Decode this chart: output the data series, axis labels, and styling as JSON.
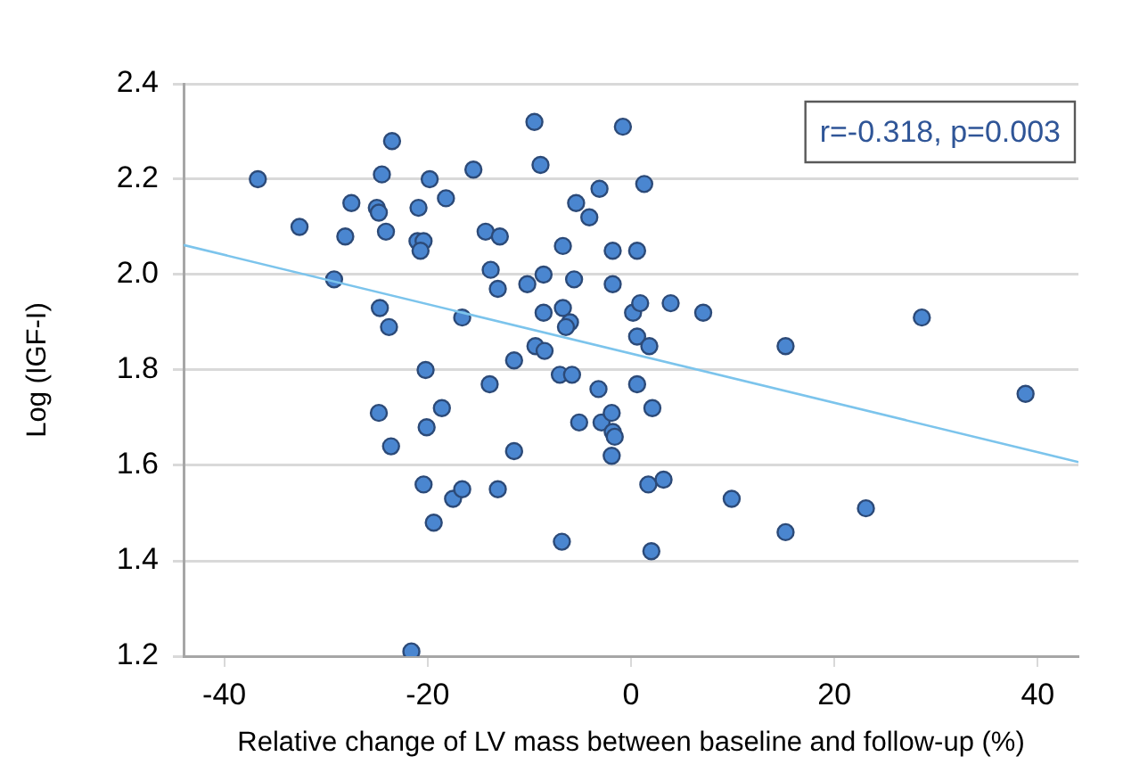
{
  "chart_data": {
    "type": "scatter",
    "xlabel": "Relative change of LV mass between baseline and follow-up (%)",
    "ylabel": "Log (IGF-I)",
    "xlim": [
      -44,
      44
    ],
    "xticks": [
      -40,
      -20,
      0,
      20,
      40
    ],
    "ylim": [
      1.2,
      2.4
    ],
    "yticks": [
      1.2,
      1.4,
      1.6,
      1.8,
      {
        "value": 2,
        "label": "2.0"
      },
      2.2,
      2.4
    ],
    "grid": "y",
    "legend": false,
    "marker": "circle",
    "annotations": [
      "r=-0.318, p=0.003"
    ],
    "series": [
      {
        "color": "#4a86d0",
        "x": [
          -36.7,
          -32.6,
          -27.5,
          -28.1,
          -29.2,
          -23.5,
          -24.5,
          -25.0,
          -24.8,
          -24.1,
          -24.7,
          -23.8,
          -20.9,
          -21.0,
          -20.4,
          -20.7,
          -19.8,
          -18.2,
          -15.5,
          -9.5,
          -8.9,
          -0.8,
          -14.3,
          -12.9,
          -13.8,
          -13.1,
          -16.6,
          -10.2,
          -8.6,
          -6.7,
          -5.4,
          -4.1,
          -3.1,
          1.3,
          -1.8,
          0.6,
          -5.6,
          -1.8,
          -8.6,
          -6.7,
          -6.0,
          -6.4,
          0.2,
          0.9,
          3.9,
          7.1,
          0.6,
          1.8,
          -9.4,
          -8.5,
          -11.5,
          -20.2,
          -13.9,
          -7.0,
          -5.8,
          -3.2,
          0.6,
          -18.6,
          -20.1,
          -5.1,
          -2.9,
          -1.9,
          2.1,
          -1.8,
          -1.6,
          -1.9,
          -11.5,
          -20.4,
          -17.5,
          -16.6,
          -13.1,
          -19.4,
          -6.8,
          1.7,
          3.2,
          9.9,
          2.0,
          -21.6,
          -24.8,
          -23.6,
          38.8,
          15.2,
          23.1,
          28.6,
          15.2
        ],
        "values": [
          2.2,
          2.1,
          2.15,
          2.08,
          1.99,
          2.28,
          2.21,
          2.14,
          2.13,
          2.09,
          1.93,
          1.89,
          2.14,
          2.07,
          2.07,
          2.05,
          2.2,
          2.16,
          2.22,
          2.32,
          2.23,
          2.31,
          2.09,
          2.08,
          2.01,
          1.97,
          1.91,
          1.98,
          2.0,
          2.06,
          2.15,
          2.12,
          2.18,
          2.19,
          2.05,
          2.05,
          1.99,
          1.98,
          1.92,
          1.93,
          1.9,
          1.89,
          1.92,
          1.94,
          1.94,
          1.92,
          1.87,
          1.85,
          1.85,
          1.84,
          1.82,
          1.8,
          1.77,
          1.79,
          1.79,
          1.76,
          1.77,
          1.72,
          1.68,
          1.69,
          1.69,
          1.71,
          1.72,
          1.67,
          1.66,
          1.62,
          1.63,
          1.56,
          1.53,
          1.55,
          1.55,
          1.48,
          1.44,
          1.56,
          1.57,
          1.53,
          1.42,
          1.21,
          1.71,
          1.64,
          1.75,
          1.46,
          1.51,
          1.91,
          1.85
        ]
      },
      {
        "type": "line",
        "color": "#7cc4ec",
        "marker": "none",
        "x": [
          -44,
          44
        ],
        "values": [
          2.062,
          1.607
        ]
      }
    ]
  }
}
